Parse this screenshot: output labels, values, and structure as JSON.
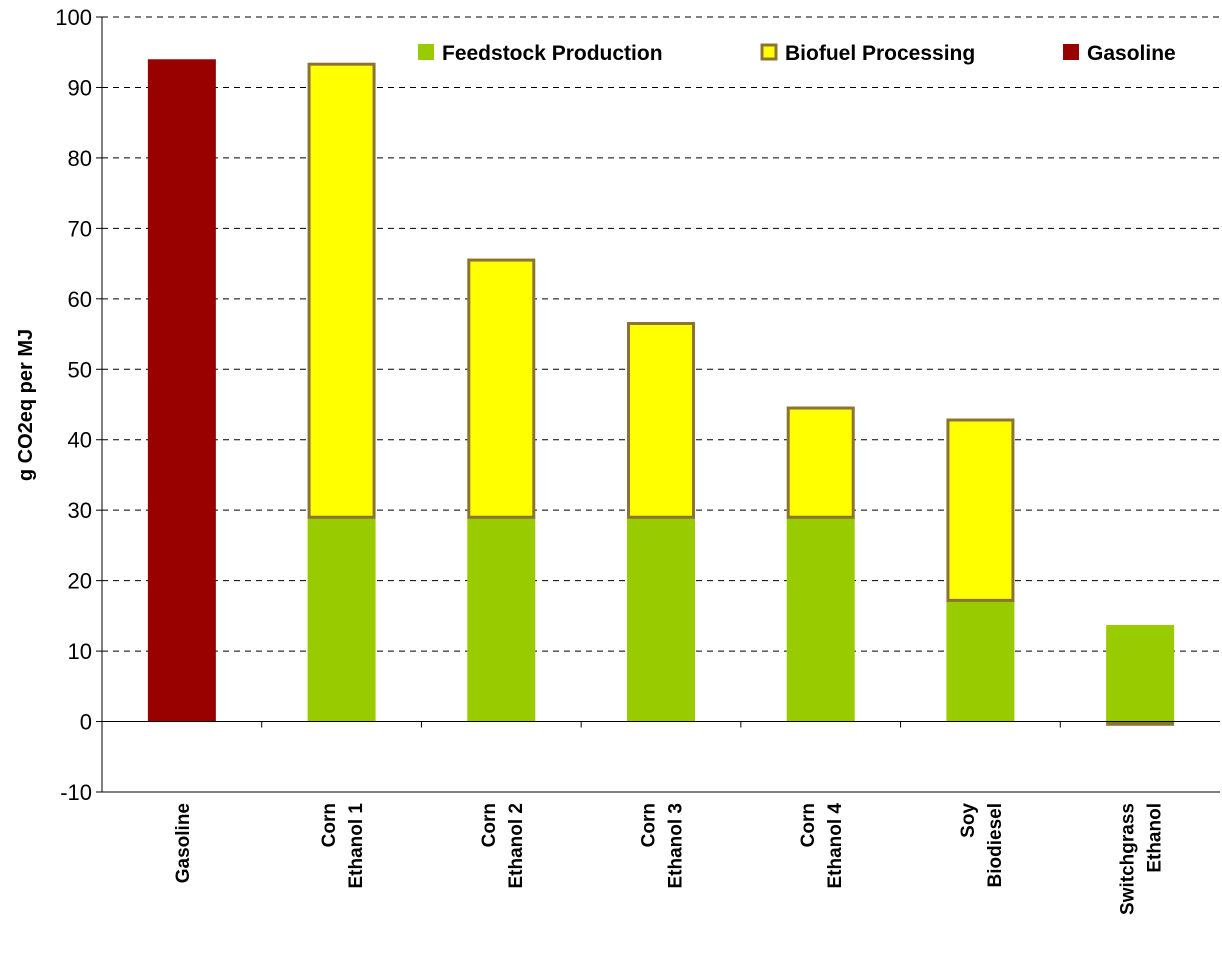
{
  "chart_data": {
    "type": "bar",
    "stacked": true,
    "categories": [
      [
        "Gasoline"
      ],
      [
        "Corn",
        "Ethanol 1"
      ],
      [
        "Corn",
        "Ethanol 2"
      ],
      [
        "Corn",
        "Ethanol 3"
      ],
      [
        "Corn",
        "Ethanol 4"
      ],
      [
        "Soy",
        "Biodiesel"
      ],
      [
        "Switchgrass",
        "Ethanol"
      ]
    ],
    "series": [
      {
        "name": "Feedstock Production",
        "color": "#99cc00",
        "values": [
          0,
          29,
          29,
          29,
          29,
          17.2,
          13.7
        ]
      },
      {
        "name": "Biofuel Processing",
        "color": "#ffff00",
        "border": "#8b7433",
        "values": [
          0,
          64.3,
          36.5,
          27.5,
          15.5,
          25.6,
          -0.6
        ]
      },
      {
        "name": "Gasoline",
        "color": "#990000",
        "values": [
          94,
          0,
          0,
          0,
          0,
          0,
          0
        ]
      }
    ],
    "ylabel": "g CO2eq per MJ",
    "ylim": [
      -10,
      100
    ],
    "yticks": [
      -10,
      0,
      10,
      20,
      30,
      40,
      50,
      60,
      70,
      80,
      90,
      100
    ],
    "grid": true,
    "legend": "top-right"
  }
}
